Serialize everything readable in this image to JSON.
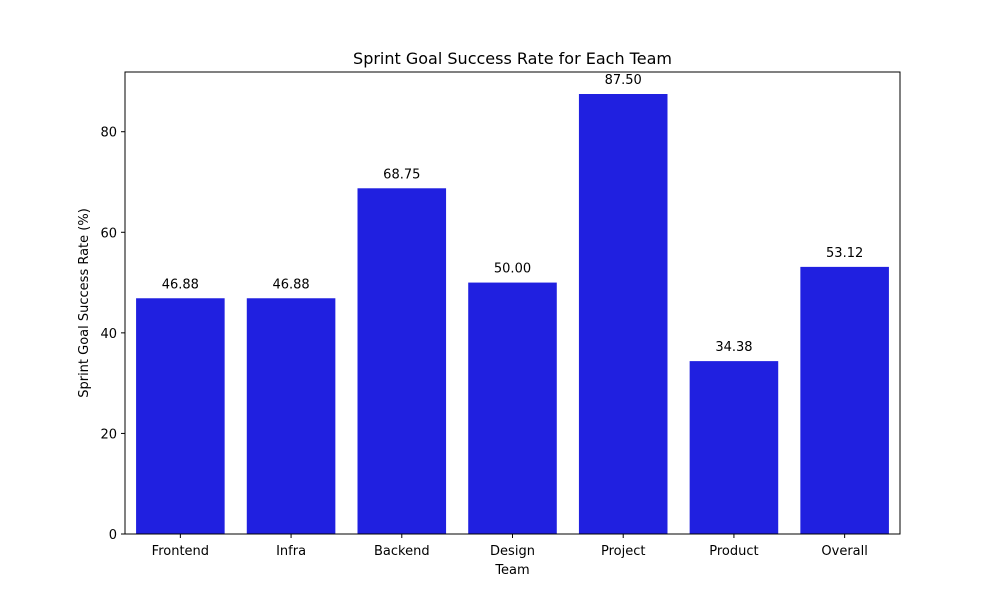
{
  "chart_data": {
    "type": "bar",
    "title": "Sprint Goal Success Rate for Each Team",
    "xlabel": "Team",
    "ylabel": "Sprint Goal Success Rate (%)",
    "categories": [
      "Frontend",
      "Infra",
      "Backend",
      "Design",
      "Project",
      "Product",
      "Overall"
    ],
    "values": [
      46.88,
      46.88,
      68.75,
      50.0,
      87.5,
      34.38,
      53.12
    ],
    "value_labels": [
      "46.88",
      "46.88",
      "68.75",
      "50.00",
      "87.50",
      "34.38",
      "53.12"
    ],
    "ylim": [
      0,
      91.875
    ],
    "yticks": [
      0,
      20,
      40,
      60,
      80
    ],
    "ytick_labels": [
      "0",
      "20",
      "40",
      "60",
      "80"
    ],
    "grid": false,
    "bar_color": "#2020e0"
  }
}
